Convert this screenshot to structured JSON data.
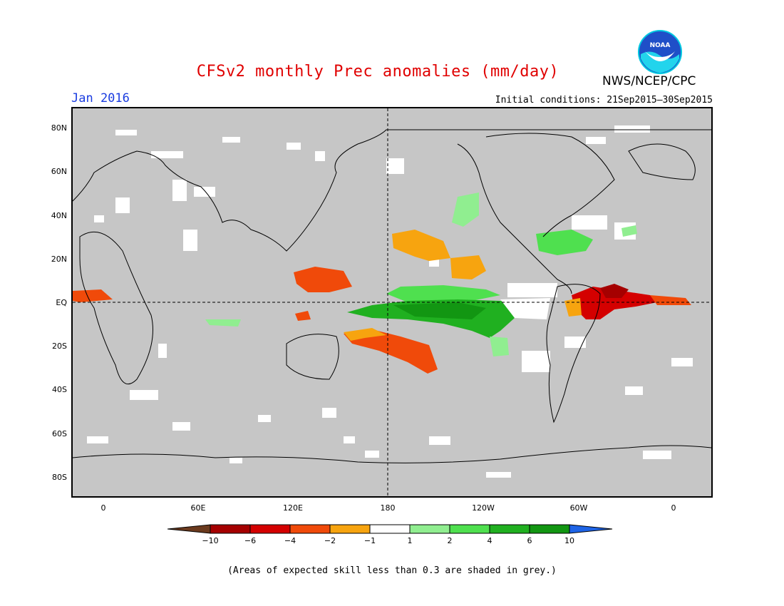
{
  "title": "CFSv2 monthly Prec anomalies (mm/day)",
  "valid_month": "Jan 2016",
  "initial_conditions": "Initial conditions: 21Sep2015–30Sep2015",
  "agency": "NWS/NCEP/CPC",
  "logo_text": "NOAA",
  "note": "(Areas of expected skill less than 0.3 are shaded in grey.)",
  "lat_labels": [
    "80N",
    "60N",
    "40N",
    "20N",
    "EQ",
    "20S",
    "40S",
    "60S",
    "80S"
  ],
  "lon_labels": [
    "0",
    "60E",
    "120E",
    "180",
    "120W",
    "60W",
    "0"
  ],
  "colorbar": {
    "labels": [
      "−10",
      "−6",
      "−4",
      "−2",
      "−1",
      "1",
      "2",
      "4",
      "6",
      "10"
    ],
    "colors": [
      "#6b3a1e",
      "#a50000",
      "#d40000",
      "#f04a0a",
      "#f7a40f",
      "#ffffff",
      "#90ee90",
      "#4fe04f",
      "#20b020",
      "#129612",
      "#1e64e6"
    ]
  },
  "colors": {
    "title": "#e00000",
    "month": "#1a3ce0",
    "skill_grey": "#c6c6c6"
  }
}
